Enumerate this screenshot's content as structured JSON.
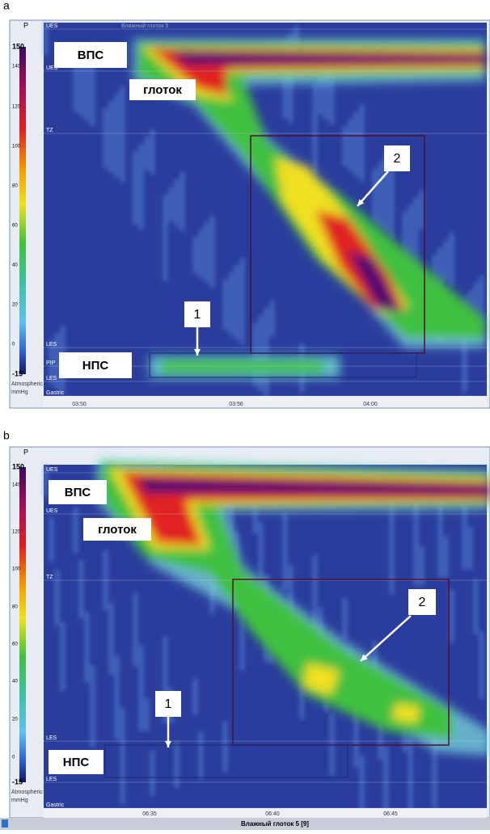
{
  "panels": [
    {
      "label": "a",
      "caption": "Влажный глоток 5",
      "scale_header": "P",
      "scale_ticks": [
        "150",
        "140",
        "120",
        "100",
        "80",
        "60",
        "40",
        "20",
        "0",
        "-15"
      ],
      "scale_unit": [
        "Atmospheric",
        "mmHg"
      ],
      "sensors": [
        "UES",
        "UES",
        "TZ",
        "LES",
        "PIP",
        "LES",
        "Gastric"
      ],
      "annotations": {
        "upper_sphincter": "ВПС",
        "pharynx": "глоток",
        "lower_sphincter": "НПС",
        "marker_1": "1",
        "marker_2": "2"
      },
      "time_ticks": [
        "03:50",
        "03:56",
        "04:00"
      ]
    },
    {
      "label": "b",
      "caption": "Влажный глоток 5",
      "scale_header": "P",
      "scale_ticks": [
        "150",
        "140",
        "120",
        "100",
        "80",
        "60",
        "40",
        "20",
        "0",
        "-15"
      ],
      "scale_unit": [
        "Atmospheric",
        "mmHg"
      ],
      "sensors": [
        "UES",
        "UES",
        "TZ",
        "LES",
        "LES",
        "Gastric"
      ],
      "annotations": {
        "upper_sphincter": "ВПС",
        "pharynx": "глоток",
        "lower_sphincter": "НПС",
        "marker_1": "1",
        "marker_2": "2"
      },
      "time_ticks": [
        "06:35",
        "06:40",
        "06:45"
      ],
      "footer": "Влажный глоток 5 [9]"
    }
  ]
}
